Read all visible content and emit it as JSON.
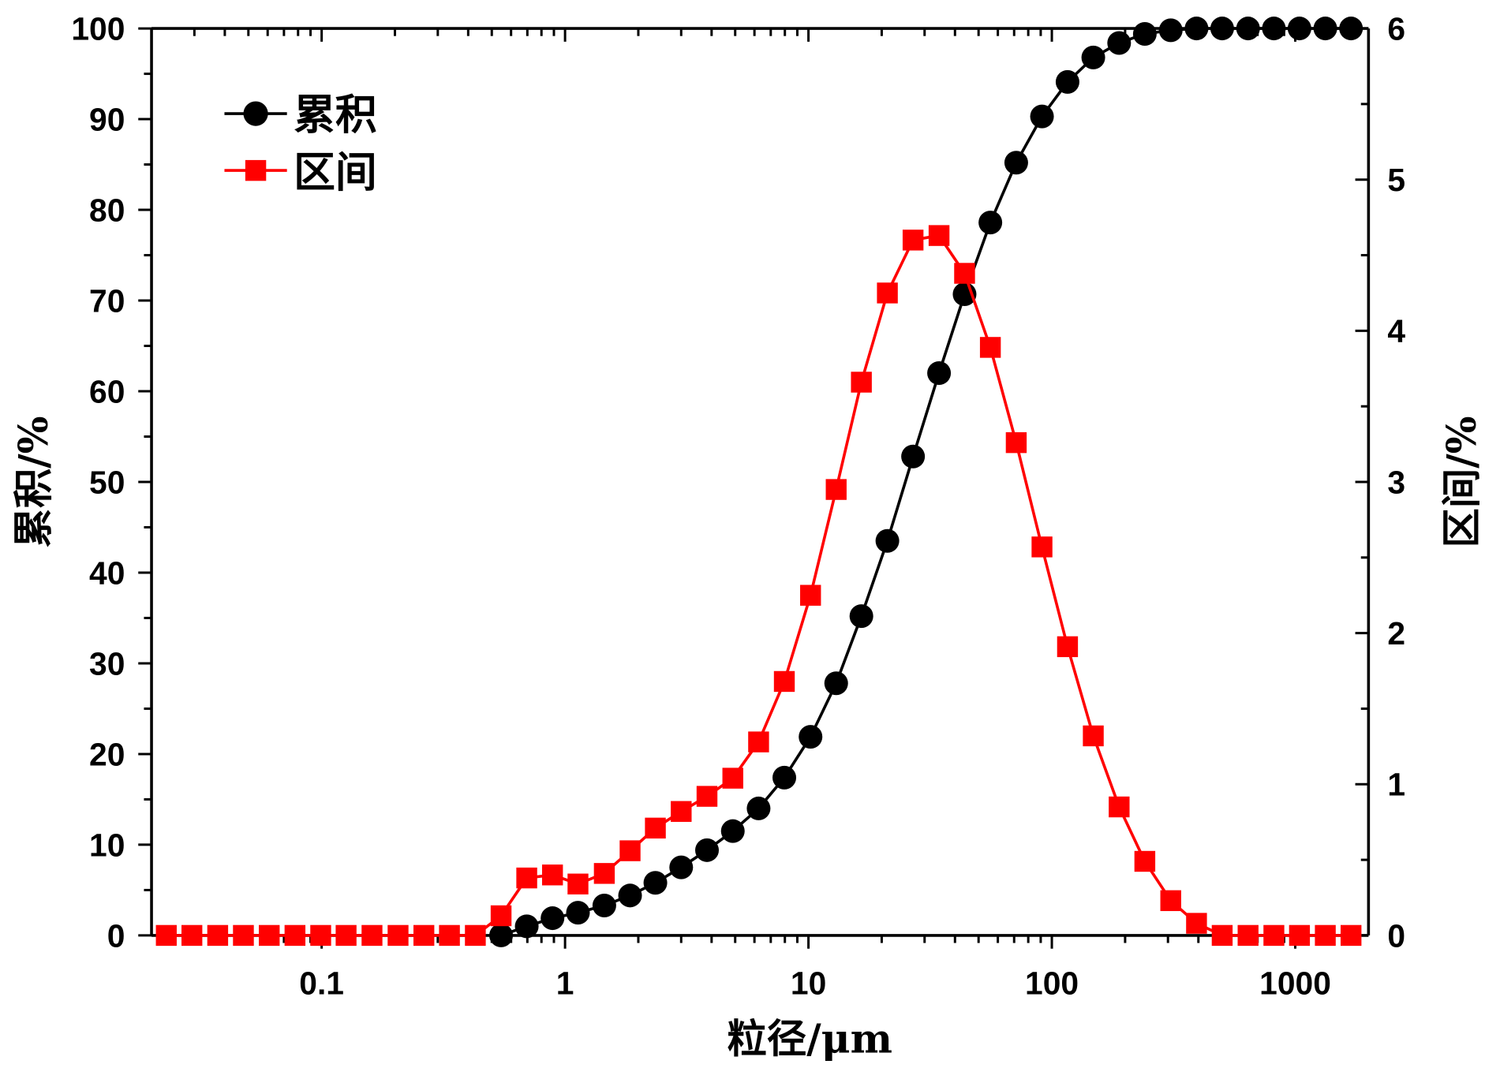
{
  "chart_data": {
    "type": "line",
    "x_scale": "log",
    "xlabel": "粒径/μm",
    "ylabel": "累积/%",
    "ylabel_right": "区间/%",
    "xlim": [
      0.02,
      2000
    ],
    "ylim": [
      0,
      100
    ],
    "ylim_right": [
      0,
      6
    ],
    "xticks": [
      0.1,
      1,
      10,
      100,
      1000
    ],
    "xtick_labels": [
      "0.1",
      "1",
      "10",
      "100",
      "1000"
    ],
    "yticks": [
      0,
      10,
      20,
      30,
      40,
      50,
      60,
      70,
      80,
      90,
      100
    ],
    "ytick_labels": [
      "0",
      "10",
      "20",
      "30",
      "40",
      "50",
      "60",
      "70",
      "80",
      "90",
      "100"
    ],
    "yticks_right": [
      0,
      1,
      2,
      3,
      4,
      5,
      6
    ],
    "ytick_labels_right": [
      "0",
      "1",
      "2",
      "3",
      "4",
      "5",
      "6"
    ],
    "grid": false,
    "legend": {
      "placement": "top-left"
    },
    "x": [
      0.023,
      0.0293,
      0.0374,
      0.0477,
      0.0609,
      0.0777,
      0.0991,
      0.126,
      0.161,
      0.206,
      0.263,
      0.335,
      0.428,
      0.546,
      0.696,
      0.888,
      1.13,
      1.45,
      1.85,
      2.35,
      3.0,
      3.83,
      4.89,
      6.24,
      7.96,
      10.2,
      13.0,
      16.5,
      21.1,
      26.9,
      34.4,
      43.8,
      55.9,
      71.4,
      91.1,
      116,
      148,
      189,
      241,
      308,
      393,
      501,
      640,
      817,
      1041,
      1329,
      1695
    ],
    "series": [
      {
        "name": "累积",
        "y_axis": "left",
        "color": "#000000",
        "marker": "circle",
        "values": [
          null,
          null,
          null,
          null,
          null,
          null,
          null,
          null,
          null,
          null,
          null,
          null,
          null,
          0,
          1.0,
          1.9,
          2.5,
          3.3,
          4.4,
          5.8,
          7.5,
          9.4,
          11.5,
          14.0,
          17.4,
          21.9,
          27.8,
          35.2,
          43.5,
          52.8,
          62.0,
          70.7,
          78.6,
          85.2,
          90.3,
          94.1,
          96.8,
          98.4,
          99.4,
          99.8,
          100,
          100,
          100,
          100,
          100,
          100,
          100
        ]
      },
      {
        "name": "区间",
        "y_axis": "right",
        "color": "#ff0000",
        "marker": "square",
        "values": [
          0,
          0,
          0,
          0,
          0,
          0,
          0,
          0,
          0,
          0,
          0,
          0,
          0,
          0.13,
          0.38,
          0.4,
          0.34,
          0.41,
          0.56,
          0.71,
          0.82,
          0.92,
          1.04,
          1.28,
          1.68,
          2.25,
          2.95,
          3.66,
          4.25,
          4.6,
          4.63,
          4.38,
          3.89,
          3.26,
          2.57,
          1.91,
          1.32,
          0.85,
          0.49,
          0.23,
          0.08,
          0,
          0,
          0,
          0,
          0,
          0
        ]
      }
    ]
  }
}
